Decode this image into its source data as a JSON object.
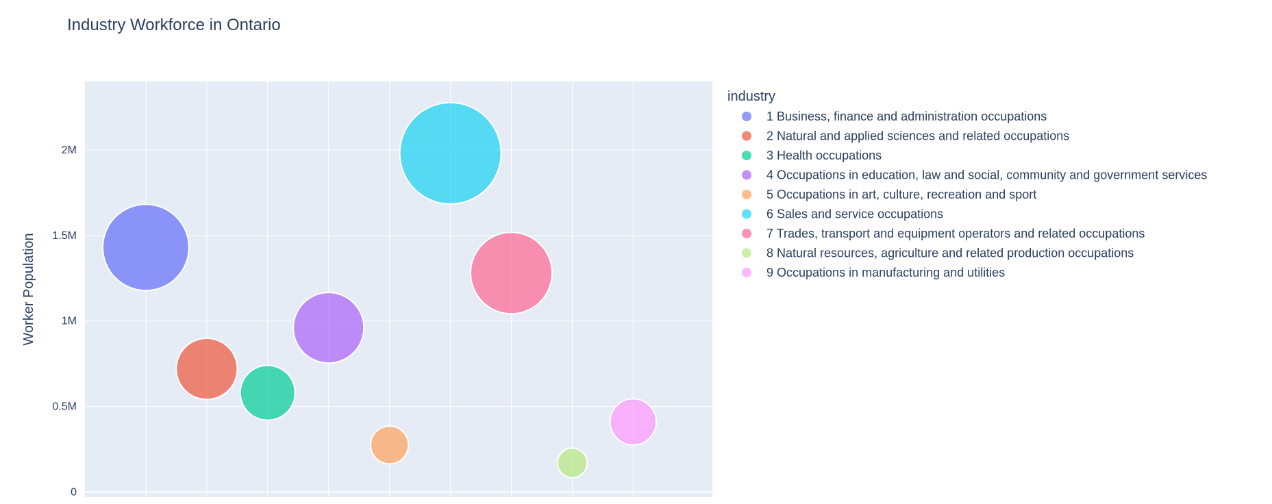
{
  "chart_data": {
    "type": "scatter",
    "title": "Industry Workforce in Ontario",
    "ylabel": "Worker Population",
    "xlabel": "",
    "legend_title": "industry",
    "legend_position": "right",
    "grid": true,
    "ylim": [
      -30000,
      2400000
    ],
    "y_ticks": [
      {
        "value": 0,
        "label": "0"
      },
      {
        "value": 500000,
        "label": "0.5M"
      },
      {
        "value": 1000000,
        "label": "1M"
      },
      {
        "value": 1500000,
        "label": "1.5M"
      },
      {
        "value": 2000000,
        "label": "2M"
      }
    ],
    "bubble_size_field": "y",
    "series": [
      {
        "name": "1 Business, finance and administration occupations",
        "x": 1,
        "y": 1430000,
        "color": "#636efa"
      },
      {
        "name": "2 Natural and applied sciences and related occupations",
        "x": 2,
        "y": 720000,
        "color": "#EF553B"
      },
      {
        "name": "3 Health occupations",
        "x": 3,
        "y": 580000,
        "color": "#00cc96"
      },
      {
        "name": "4 Occupations in education, law and social, community and government services",
        "x": 4,
        "y": 960000,
        "color": "#ab63fa"
      },
      {
        "name": "5 Occupations in art, culture, recreation and sport",
        "x": 5,
        "y": 275000,
        "color": "#FFA15A"
      },
      {
        "name": "6 Sales and service occupations",
        "x": 6,
        "y": 1980000,
        "color": "#19d3f3"
      },
      {
        "name": "7 Trades, transport and equipment operators and related occupations",
        "x": 7,
        "y": 1280000,
        "color": "#FF6692"
      },
      {
        "name": "8 Natural resources, agriculture and related production occupations",
        "x": 8,
        "y": 170000,
        "color": "#B6E880"
      },
      {
        "name": "9 Occupations in manufacturing and utilities",
        "x": 9,
        "y": 410000,
        "color": "#FF97FF"
      }
    ],
    "colors": {
      "plot_bg": "#E5ECF6",
      "grid": "#ffffff",
      "text": "#2a3f5f"
    }
  }
}
